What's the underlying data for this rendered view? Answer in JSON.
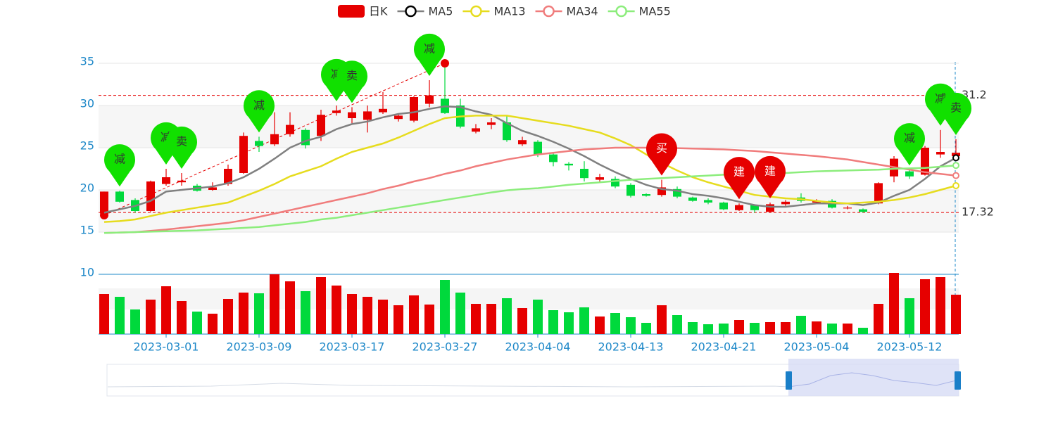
{
  "chart_data": {
    "type": "candlestick",
    "categories": [
      null,
      null,
      null,
      null,
      "2023-03-01",
      null,
      null,
      null,
      null,
      null,
      "2023-03-09",
      null,
      null,
      null,
      null,
      null,
      "2023-03-17",
      null,
      null,
      null,
      null,
      null,
      "2023-03-27",
      null,
      null,
      null,
      null,
      null,
      "2023-04-04",
      null,
      null,
      null,
      null,
      null,
      "2023-04-13",
      null,
      null,
      null,
      null,
      null,
      "2023-04-21",
      null,
      null,
      null,
      null,
      null,
      "2023-05-04",
      null,
      null,
      null,
      null,
      null,
      "2023-05-12",
      null,
      null,
      null
    ],
    "ylim": [
      10,
      35
    ],
    "yticks": [
      10,
      15,
      20,
      25,
      30,
      35
    ],
    "series": [
      {
        "name": "日K",
        "up_color": "#e60000",
        "down_color": "#00d93c",
        "open": [
          17.2,
          19.8,
          18.8,
          17.5,
          20.7,
          20.9,
          20.5,
          20.0,
          20.7,
          22.0,
          25.8,
          25.4,
          26.6,
          27.1,
          26.4,
          29.1,
          28.5,
          28.3,
          29.2,
          28.4,
          28.2,
          30.2,
          30.8,
          30.0,
          26.9,
          27.7,
          28.0,
          25.4,
          25.7,
          24.2,
          23.1,
          22.5,
          21.2,
          21.3,
          20.6,
          19.5,
          19.4,
          20.1,
          19.1,
          18.8,
          18.5,
          17.6,
          18.2,
          17.4,
          18.3,
          19.1,
          18.5,
          18.7,
          17.8,
          17.7,
          18.4,
          21.6,
          22.2,
          21.8,
          24.2,
          24.0
        ],
        "close": [
          19.8,
          18.6,
          17.5,
          21.0,
          21.5,
          21.1,
          19.9,
          20.3,
          22.5,
          26.4,
          25.2,
          26.6,
          27.7,
          25.3,
          28.9,
          29.4,
          29.2,
          29.3,
          29.6,
          28.8,
          31.0,
          31.2,
          29.1,
          27.5,
          27.3,
          28.0,
          25.9,
          25.9,
          24.2,
          23.3,
          22.9,
          21.4,
          21.5,
          20.4,
          19.3,
          19.3,
          20.3,
          19.2,
          18.7,
          18.5,
          17.7,
          18.2,
          17.6,
          18.3,
          18.6,
          18.7,
          18.7,
          17.9,
          17.9,
          17.4,
          20.8,
          23.7,
          21.6,
          25.0,
          24.5,
          24.4
        ],
        "high": [
          19.8,
          19.9,
          19.0,
          21.1,
          22.5,
          22.0,
          20.7,
          20.9,
          23.0,
          26.8,
          26.3,
          29.2,
          29.2,
          27.3,
          29.5,
          30.0,
          29.8,
          30.0,
          31.6,
          29.0,
          31.1,
          33.0,
          35.0,
          30.8,
          27.8,
          28.5,
          28.8,
          26.3,
          25.9,
          24.5,
          23.3,
          23.4,
          21.9,
          21.6,
          20.8,
          19.6,
          21.2,
          20.4,
          19.2,
          19.0,
          18.6,
          18.4,
          18.3,
          18.5,
          18.8,
          19.6,
          18.9,
          18.9,
          18.1,
          17.8,
          20.9,
          24.0,
          22.4,
          25.2,
          27.1,
          26.0
        ],
        "low": [
          17.0,
          18.5,
          17.3,
          17.4,
          20.5,
          20.5,
          19.8,
          19.9,
          20.5,
          21.9,
          24.5,
          25.2,
          26.3,
          24.9,
          25.8,
          28.8,
          27.9,
          26.8,
          29.0,
          28.1,
          28.0,
          29.8,
          29.0,
          27.3,
          26.7,
          27.2,
          25.7,
          25.2,
          23.9,
          22.8,
          22.3,
          21.0,
          20.9,
          20.2,
          19.1,
          19.2,
          19.2,
          19.0,
          18.6,
          18.3,
          17.6,
          17.5,
          17.3,
          17.3,
          18.1,
          18.5,
          18.4,
          17.8,
          17.7,
          17.3,
          18.3,
          20.9,
          21.3,
          21.7,
          23.8,
          23.5
        ],
        "volume": [
          57,
          53,
          35,
          49,
          68,
          47,
          32,
          29,
          50,
          59,
          58,
          85,
          75,
          61,
          81,
          69,
          57,
          53,
          49,
          41,
          55,
          42,
          77,
          59,
          43,
          43,
          51,
          37,
          49,
          34,
          31,
          38,
          25,
          30,
          24,
          16,
          41,
          27,
          17,
          14,
          15,
          20,
          16,
          17,
          17,
          26,
          18,
          15,
          15,
          9,
          43,
          87,
          51,
          78,
          81,
          56
        ]
      },
      {
        "name": "MA5",
        "color": "#808080",
        "values": [
          17.3,
          17.7,
          18.1,
          18.7,
          19.8,
          20.0,
          20.2,
          20.4,
          20.8,
          21.5,
          22.5,
          23.7,
          25.0,
          25.8,
          26.3,
          27.2,
          27.8,
          28.1,
          28.6,
          29.0,
          29.2,
          29.6,
          29.9,
          29.8,
          29.3,
          28.9,
          27.9,
          27.0,
          26.4,
          25.7,
          24.9,
          24.0,
          23.0,
          22.1,
          21.3,
          20.6,
          20.1,
          19.9,
          19.5,
          19.3,
          19.0,
          18.6,
          18.2,
          18.0,
          18.0,
          18.2,
          18.4,
          18.4,
          18.4,
          18.2,
          18.5,
          19.3,
          20.0,
          21.3,
          22.8,
          23.8
        ]
      },
      {
        "name": "MA13",
        "color": "#e6dc1e",
        "values": [
          16.2,
          16.3,
          16.5,
          16.9,
          17.3,
          17.6,
          17.9,
          18.2,
          18.5,
          19.2,
          19.9,
          20.7,
          21.6,
          22.2,
          22.8,
          23.7,
          24.5,
          25.0,
          25.5,
          26.2,
          27.0,
          27.8,
          28.5,
          28.7,
          28.8,
          28.8,
          28.8,
          28.5,
          28.2,
          27.9,
          27.6,
          27.2,
          26.8,
          26.1,
          25.3,
          24.2,
          23.2,
          22.3,
          21.5,
          20.9,
          20.4,
          19.9,
          19.4,
          19.2,
          19.0,
          18.9,
          18.7,
          18.5,
          18.4,
          18.5,
          18.6,
          18.8,
          19.1,
          19.5,
          20.0,
          20.5
        ]
      },
      {
        "name": "MA34",
        "color": "#f07c7c",
        "values": [
          14.9,
          14.95,
          15.0,
          15.15,
          15.3,
          15.5,
          15.7,
          15.9,
          16.1,
          16.4,
          16.8,
          17.2,
          17.6,
          18.0,
          18.4,
          18.8,
          19.2,
          19.6,
          20.1,
          20.5,
          21.0,
          21.4,
          21.9,
          22.3,
          22.8,
          23.2,
          23.6,
          23.9,
          24.2,
          24.4,
          24.6,
          24.8,
          24.9,
          25.0,
          25.0,
          25.0,
          25.0,
          24.95,
          24.9,
          24.85,
          24.8,
          24.7,
          24.6,
          24.45,
          24.3,
          24.15,
          24.0,
          23.8,
          23.6,
          23.3,
          23.0,
          22.7,
          22.4,
          22.1,
          21.9,
          21.7
        ]
      },
      {
        "name": "MA55",
        "color": "#8ced7c",
        "values": [
          14.9,
          14.95,
          15.0,
          15.05,
          15.1,
          15.15,
          15.2,
          15.3,
          15.4,
          15.5,
          15.6,
          15.8,
          16.0,
          16.2,
          16.5,
          16.7,
          17.0,
          17.3,
          17.6,
          17.9,
          18.2,
          18.5,
          18.8,
          19.1,
          19.4,
          19.7,
          19.95,
          20.1,
          20.2,
          20.4,
          20.6,
          20.75,
          20.9,
          21.05,
          21.2,
          21.3,
          21.4,
          21.5,
          21.6,
          21.7,
          21.8,
          21.85,
          21.9,
          21.95,
          22.0,
          22.1,
          22.2,
          22.25,
          22.3,
          22.35,
          22.4,
          22.5,
          22.55,
          22.6,
          22.75,
          22.9
        ]
      }
    ],
    "mark_lines": [
      31.2,
      17.32
    ],
    "markers": [
      {
        "index": 1,
        "label": "减",
        "color": "#11e000"
      },
      {
        "index": 4,
        "label": "减",
        "color": "#11e000"
      },
      {
        "index": 5,
        "label": "卖",
        "color": "#11e000"
      },
      {
        "index": 10,
        "label": "减",
        "color": "#11e000"
      },
      {
        "index": 15,
        "label": "减",
        "color": "#11e000"
      },
      {
        "index": 16,
        "label": "卖",
        "color": "#11e000"
      },
      {
        "index": 21,
        "label": "减",
        "color": "#11e000"
      },
      {
        "index": 36,
        "label": "买",
        "color": "#e60000"
      },
      {
        "index": 41,
        "label": "建",
        "color": "#e60000"
      },
      {
        "index": 43,
        "label": "建",
        "color": "#e60000"
      },
      {
        "index": 52,
        "label": "减",
        "color": "#11e000"
      },
      {
        "index": 54,
        "label": "减",
        "color": "#11e000"
      },
      {
        "index": 55,
        "label": "卖",
        "color": "#11e000"
      }
    ]
  }
}
